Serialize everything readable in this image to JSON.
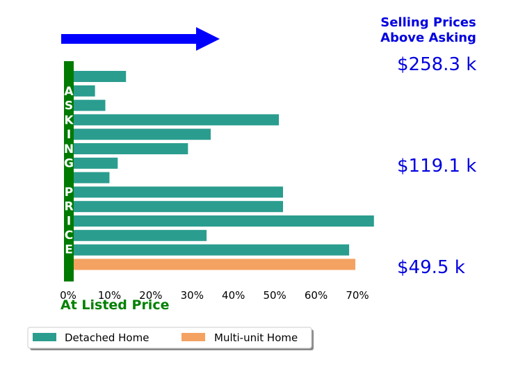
{
  "colors": {
    "detached": "#2a9d8f",
    "multi": "#f4a261",
    "axis_band": "#007a00",
    "arrow": "#0000ff",
    "price_text": "#0000e0",
    "header_text": "#0000e0",
    "bottom_text": "#008000"
  },
  "chart_data": {
    "type": "bar",
    "orientation": "horizontal",
    "x": {
      "min": 0,
      "max": 0.75,
      "ticks": [
        0,
        0.1,
        0.2,
        0.3,
        0.4,
        0.5,
        0.6,
        0.7
      ],
      "tick_labels": [
        "0%",
        "10%",
        "20%",
        "30%",
        "40%",
        "50%",
        "60%",
        "70%"
      ]
    },
    "series": [
      {
        "name": "Detached Home",
        "values": [
          0.14,
          0.065,
          0.09,
          0.51,
          0.345,
          0.29,
          0.12,
          0.1,
          0.52,
          0.52,
          0.74,
          0.335,
          0.68
        ]
      },
      {
        "name": "Multi-unit Home",
        "values": [
          0.695
        ]
      }
    ],
    "vertical_axis_text": [
      "A",
      "S",
      "K",
      "I",
      "N",
      "G",
      "",
      "P",
      "R",
      "I",
      "C",
      "E"
    ],
    "price_labels": [
      "$258.3 k",
      "$119.1 k",
      "$49.5 k"
    ],
    "header": [
      "Selling Prices",
      "Above Asking"
    ],
    "bottom_label": "At Listed Price",
    "legend": {
      "placement": "bottom-left",
      "entries": [
        "Detached Home",
        "Multi-unit Home"
      ]
    }
  }
}
